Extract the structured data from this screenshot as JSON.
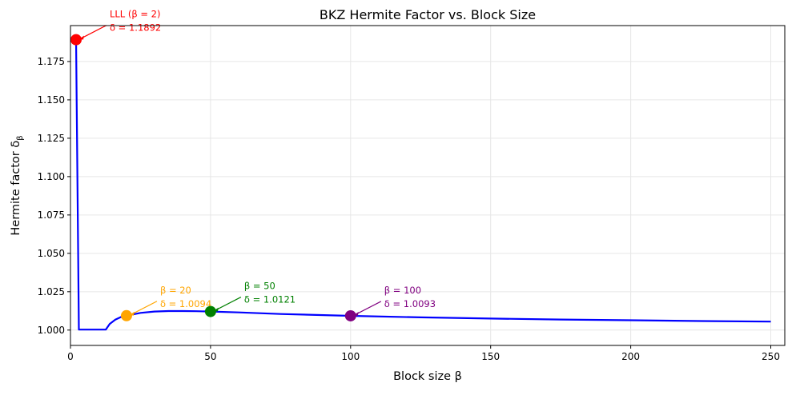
{
  "chart_data": {
    "type": "line",
    "title": "BKZ Hermite Factor vs. Block Size",
    "xlabel": "Block size β",
    "ylabel": "Hermite factor δ_β",
    "ylabel_main": "Hermite factor δ",
    "ylabel_sub": "β",
    "xlim": [
      0,
      255
    ],
    "ylim": [
      0.99,
      1.1984
    ],
    "grid": true,
    "xticks": [
      0,
      50,
      100,
      150,
      200,
      250
    ],
    "yticks": [
      1.0,
      1.025,
      1.05,
      1.075,
      1.1,
      1.125,
      1.15,
      1.175
    ],
    "xtick_labels": [
      "0",
      "50",
      "100",
      "150",
      "200",
      "250"
    ],
    "ytick_labels": [
      "1.000",
      "1.025",
      "1.050",
      "1.075",
      "1.100",
      "1.125",
      "1.150",
      "1.175"
    ],
    "series": [
      {
        "color": "#0000ff",
        "x": [
          2,
          3,
          5,
          8,
          10,
          12.6,
          14,
          16,
          18,
          20,
          25,
          30,
          35,
          40,
          45,
          50,
          60,
          75,
          100,
          125,
          150,
          175,
          200,
          225,
          250
        ],
        "y": [
          1.1892,
          1.0003,
          1.0003,
          1.0003,
          1.0003,
          1.0003,
          1.004,
          1.0068,
          1.0085,
          1.0094,
          1.0112,
          1.0121,
          1.0124,
          1.0124,
          1.0123,
          1.0121,
          1.0115,
          1.0105,
          1.0093,
          1.0083,
          1.0075,
          1.0069,
          1.0064,
          1.0059,
          1.0055
        ]
      }
    ],
    "highlights": [
      {
        "x": 2,
        "y": 1.1892,
        "color": "#ff0000",
        "line1": "LLL (β = 2)",
        "line2": "δ = 1.1892"
      },
      {
        "x": 20,
        "y": 1.0094,
        "color": "#ffa500",
        "line1": "β = 20",
        "line2": "δ = 1.0094"
      },
      {
        "x": 50,
        "y": 1.0121,
        "color": "#008000",
        "line1": "β = 50",
        "line2": "δ = 1.0121"
      },
      {
        "x": 100,
        "y": 1.0093,
        "color": "#800080",
        "line1": "β = 100",
        "line2": "δ = 1.0093"
      }
    ]
  }
}
